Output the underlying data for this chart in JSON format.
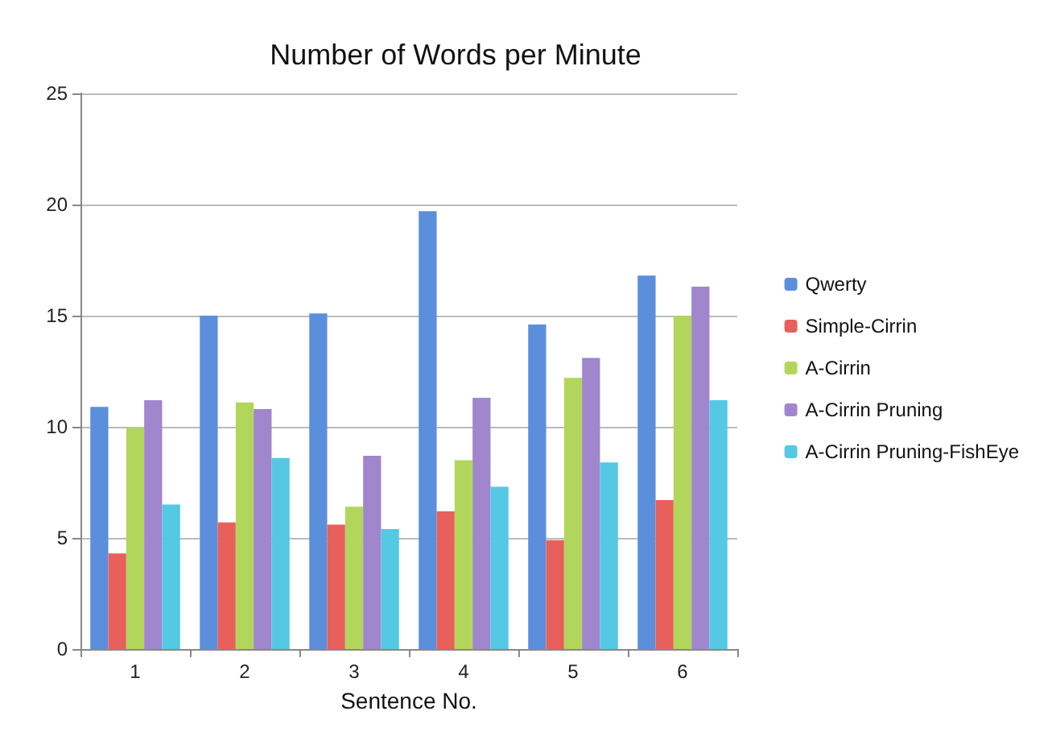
{
  "chart_data": {
    "type": "bar",
    "title": "Number of Words per Minute",
    "xlabel": "Sentence No.",
    "categories": [
      "1",
      "2",
      "3",
      "4",
      "5",
      "6"
    ],
    "series": [
      {
        "name": "Qwerty",
        "color": "#5b8fdc",
        "values": [
          10.9,
          15.0,
          15.1,
          19.7,
          14.6,
          16.8
        ]
      },
      {
        "name": "Simple-Cirrin",
        "color": "#e8605c",
        "values": [
          4.3,
          5.7,
          5.6,
          6.2,
          4.9,
          6.7
        ]
      },
      {
        "name": "A-Cirrin",
        "color": "#b2d65c",
        "values": [
          10.0,
          11.1,
          6.4,
          8.5,
          12.2,
          15.0
        ]
      },
      {
        "name": "A-Cirrin Pruning",
        "color": "#a086cc",
        "values": [
          11.2,
          10.8,
          8.7,
          11.3,
          13.1,
          16.3
        ]
      },
      {
        "name": "A-Cirrin Pruning-FishEye",
        "color": "#55c8e4",
        "values": [
          6.5,
          8.6,
          5.4,
          7.3,
          8.4,
          11.2
        ]
      }
    ],
    "ylim": [
      0,
      25
    ],
    "yticks": [
      0,
      5,
      10,
      15,
      20,
      25
    ],
    "grid": "y",
    "legend": "right"
  }
}
